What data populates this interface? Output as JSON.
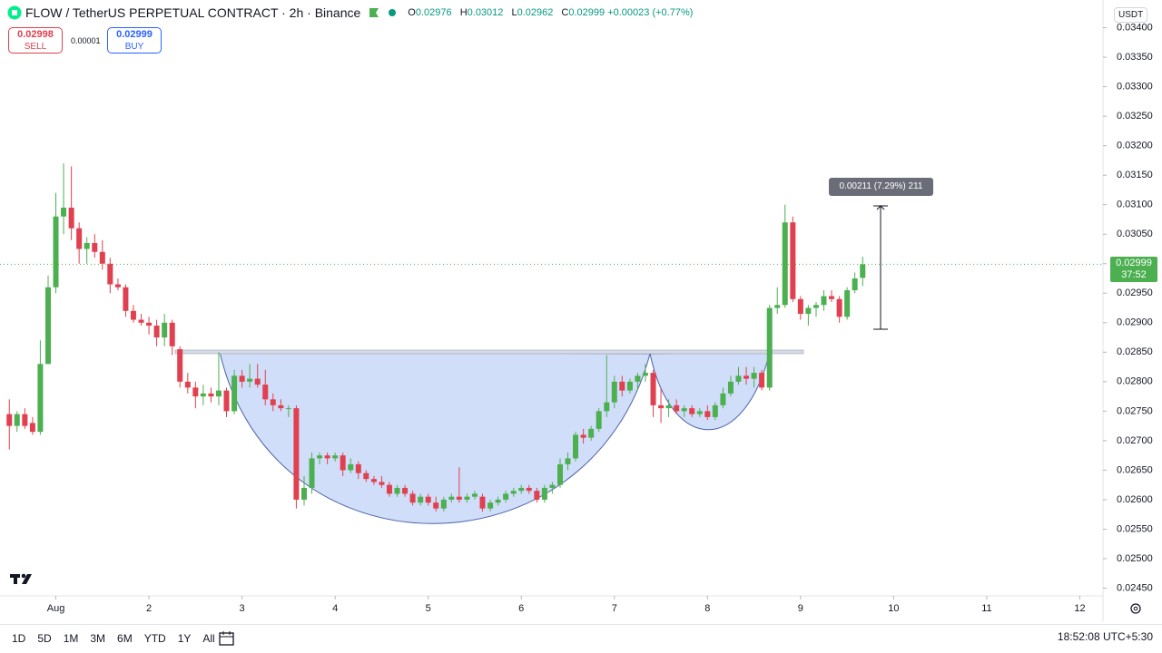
{
  "chart_data": {
    "type": "candlestick",
    "title": "FLOW / TetherUS PERPETUAL CONTRACT · 2h · Binance",
    "ohlc_legend": [
      {
        "label": "O",
        "value": 0.02976
      },
      {
        "label": "H",
        "value": 0.03012
      },
      {
        "label": "L",
        "value": 0.02962
      },
      {
        "label": "C",
        "value": 0.02999
      }
    ],
    "change": {
      "value": 0.00023,
      "label": "+0.00023"
    },
    "change_pct": {
      "value": 0.77,
      "label": "(+0.77%)"
    },
    "sell": {
      "price": 0.02998,
      "label": "SELL"
    },
    "spread": 1e-05,
    "buy": {
      "price": 0.02999,
      "label": "BUY"
    },
    "currency": "USDT",
    "last_price": {
      "value": 0.02999,
      "countdown": "37:52"
    },
    "measure_label": "0.00211 (7.29%) 211",
    "timeframes": [
      "1D",
      "5D",
      "1M",
      "3M",
      "6M",
      "YTD",
      "1Y",
      "All"
    ],
    "clock": "18:52:08 UTC+5:30",
    "up_color": "#4caf50",
    "down_color": "#e0404f",
    "grid": false,
    "xlim": [
      0.4,
      12.2
    ],
    "ylim": [
      0.0244,
      0.03447
    ],
    "xticks": [
      {
        "value": 1,
        "label": "Aug"
      },
      2,
      3,
      4,
      5,
      6,
      7,
      8,
      9,
      10,
      11,
      12
    ],
    "yticks": [
      {
        "value": 0.0245,
        "label": "0.02450"
      },
      {
        "value": 0.025,
        "label": "0.02500"
      },
      {
        "value": 0.0255,
        "label": "0.02550"
      },
      {
        "value": 0.026,
        "label": "0.02600"
      },
      {
        "value": 0.0265,
        "label": "0.02650"
      },
      {
        "value": 0.027,
        "label": "0.02700"
      },
      {
        "value": 0.0275,
        "label": "0.02750"
      },
      {
        "value": 0.028,
        "label": "0.02800"
      },
      {
        "value": 0.0285,
        "label": "0.02850"
      },
      {
        "value": 0.029,
        "label": "0.02900"
      },
      {
        "value": 0.0295,
        "label": "0.02950"
      },
      {
        "value": 0.03,
        "label": "0.03000"
      },
      {
        "value": 0.0305,
        "label": "0.03050"
      },
      {
        "value": 0.031,
        "label": "0.03100"
      },
      {
        "value": 0.0315,
        "label": "0.03150"
      },
      {
        "value": 0.032,
        "label": "0.03200"
      },
      {
        "value": 0.0325,
        "label": "0.03250"
      },
      {
        "value": 0.033,
        "label": "0.03300"
      },
      {
        "value": 0.0335,
        "label": "0.03350"
      },
      {
        "value": 0.034,
        "label": "0.03400"
      }
    ],
    "x": [
      0.5,
      0.583,
      0.667,
      0.75,
      0.833,
      0.917,
      1,
      1.083,
      1.167,
      1.25,
      1.333,
      1.417,
      1.5,
      1.583,
      1.667,
      1.75,
      1.833,
      1.917,
      2,
      2.083,
      2.167,
      2.25,
      2.333,
      2.417,
      2.5,
      2.583,
      2.667,
      2.75,
      2.833,
      2.917,
      3,
      3.083,
      3.167,
      3.25,
      3.333,
      3.417,
      3.5,
      3.583,
      3.667,
      3.75,
      3.833,
      3.917,
      4,
      4.083,
      4.167,
      4.25,
      4.333,
      4.417,
      4.5,
      4.583,
      4.667,
      4.75,
      4.833,
      4.917,
      5,
      5.083,
      5.167,
      5.25,
      5.333,
      5.417,
      5.5,
      5.583,
      5.667,
      5.75,
      5.833,
      5.917,
      6,
      6.083,
      6.167,
      6.25,
      6.333,
      6.417,
      6.5,
      6.583,
      6.667,
      6.75,
      6.833,
      6.917,
      7,
      7.083,
      7.167,
      7.25,
      7.333,
      7.417,
      7.5,
      7.583,
      7.667,
      7.75,
      7.833,
      7.917,
      8,
      8.083,
      8.167,
      8.25,
      8.333,
      8.417,
      8.5,
      8.583,
      8.667,
      8.75,
      8.833,
      8.917,
      9,
      9.083,
      9.167,
      9.25,
      9.333,
      9.417,
      9.5,
      9.583,
      9.667
    ],
    "open": [
      0.02745,
      0.02725,
      0.02745,
      0.0273,
      0.02715,
      0.0283,
      0.0296,
      0.0308,
      0.03095,
      0.0306,
      0.03025,
      0.03035,
      0.0302,
      0.03,
      0.02965,
      0.0296,
      0.0292,
      0.02905,
      0.029,
      0.02895,
      0.02875,
      0.029,
      0.02855,
      0.028,
      0.0279,
      0.02775,
      0.0278,
      0.02775,
      0.02785,
      0.0275,
      0.0281,
      0.028,
      0.02805,
      0.02795,
      0.0277,
      0.0276,
      0.02755,
      0.02755,
      0.026,
      0.0262,
      0.0267,
      0.02675,
      0.0267,
      0.02675,
      0.0265,
      0.0266,
      0.02645,
      0.02635,
      0.0263,
      0.02625,
      0.0261,
      0.0262,
      0.0261,
      0.02595,
      0.02605,
      0.02595,
      0.02585,
      0.026,
      0.02605,
      0.026,
      0.02605,
      0.02605,
      0.02585,
      0.02595,
      0.026,
      0.0261,
      0.02615,
      0.0262,
      0.02615,
      0.026,
      0.0262,
      0.02625,
      0.0266,
      0.0267,
      0.0271,
      0.02705,
      0.0272,
      0.0275,
      0.02765,
      0.028,
      0.02785,
      0.028,
      0.0281,
      0.02815,
      0.0276,
      0.02755,
      0.0276,
      0.0275,
      0.02755,
      0.02745,
      0.0275,
      0.0274,
      0.0276,
      0.0278,
      0.028,
      0.0281,
      0.02805,
      0.02815,
      0.0279,
      0.02925,
      0.0293,
      0.0307,
      0.0294,
      0.02915,
      0.02925,
      0.0293,
      0.02945,
      0.0294,
      0.0291,
      0.02955,
      0.02976
    ],
    "high": [
      0.0277,
      0.0275,
      0.02755,
      0.0274,
      0.0287,
      0.0298,
      0.0312,
      0.0317,
      0.03165,
      0.0307,
      0.03045,
      0.0305,
      0.0304,
      0.0301,
      0.02975,
      0.02965,
      0.0293,
      0.02915,
      0.0291,
      0.02905,
      0.02915,
      0.02905,
      0.0286,
      0.02815,
      0.028,
      0.02795,
      0.0279,
      0.0285,
      0.0279,
      0.0282,
      0.0282,
      0.0283,
      0.0283,
      0.0282,
      0.0278,
      0.0277,
      0.0276,
      0.0276,
      0.0264,
      0.0268,
      0.0268,
      0.0268,
      0.0268,
      0.0268,
      0.0267,
      0.02665,
      0.0265,
      0.0264,
      0.0264,
      0.0263,
      0.02625,
      0.02625,
      0.02615,
      0.0261,
      0.0261,
      0.02605,
      0.02605,
      0.0261,
      0.02655,
      0.0261,
      0.02615,
      0.0261,
      0.026,
      0.02605,
      0.02615,
      0.0262,
      0.02625,
      0.02625,
      0.0262,
      0.02625,
      0.0263,
      0.0267,
      0.0268,
      0.02715,
      0.0272,
      0.02725,
      0.02755,
      0.02845,
      0.0281,
      0.0281,
      0.02805,
      0.02815,
      0.0283,
      0.0282,
      0.0279,
      0.0277,
      0.0277,
      0.0276,
      0.0276,
      0.02755,
      0.0276,
      0.02765,
      0.0279,
      0.0281,
      0.02825,
      0.02825,
      0.02825,
      0.0282,
      0.0293,
      0.0296,
      0.031,
      0.0308,
      0.02945,
      0.0293,
      0.02935,
      0.02955,
      0.02955,
      0.02945,
      0.0296,
      0.02985,
      0.03012
    ],
    "low": [
      0.02685,
      0.02715,
      0.0272,
      0.0271,
      0.0271,
      0.0283,
      0.0295,
      0.0305,
      0.0304,
      0.03,
      0.03,
      0.0301,
      0.0299,
      0.0295,
      0.02955,
      0.0291,
      0.029,
      0.02895,
      0.0288,
      0.0286,
      0.0286,
      0.02845,
      0.0279,
      0.0278,
      0.02755,
      0.0276,
      0.02765,
      0.0276,
      0.0274,
      0.02745,
      0.0279,
      0.0279,
      0.0279,
      0.0276,
      0.0275,
      0.0275,
      0.0274,
      0.02585,
      0.0259,
      0.0261,
      0.0266,
      0.0266,
      0.02665,
      0.0264,
      0.02645,
      0.02635,
      0.0263,
      0.02625,
      0.0262,
      0.02605,
      0.02605,
      0.02605,
      0.0259,
      0.0259,
      0.0259,
      0.0258,
      0.0258,
      0.02595,
      0.02595,
      0.02595,
      0.026,
      0.0258,
      0.0258,
      0.0259,
      0.02595,
      0.02605,
      0.0261,
      0.0261,
      0.02595,
      0.02595,
      0.0261,
      0.0262,
      0.0265,
      0.02665,
      0.02695,
      0.027,
      0.02715,
      0.0274,
      0.02755,
      0.02775,
      0.0278,
      0.02785,
      0.028,
      0.0274,
      0.0273,
      0.0274,
      0.02745,
      0.0274,
      0.0274,
      0.0274,
      0.02735,
      0.02735,
      0.02755,
      0.02775,
      0.02795,
      0.02795,
      0.0279,
      0.02785,
      0.02785,
      0.02915,
      0.02925,
      0.02935,
      0.02905,
      0.02895,
      0.0291,
      0.0292,
      0.02935,
      0.029,
      0.02905,
      0.0295,
      0.02962
    ],
    "close": [
      0.02725,
      0.02745,
      0.02725,
      0.02715,
      0.0283,
      0.0296,
      0.0308,
      0.03095,
      0.0306,
      0.03025,
      0.03035,
      0.0302,
      0.03,
      0.02965,
      0.0296,
      0.0292,
      0.02905,
      0.029,
      0.02895,
      0.02875,
      0.029,
      0.0286,
      0.028,
      0.0279,
      0.02775,
      0.0278,
      0.02775,
      0.02785,
      0.0275,
      0.0281,
      0.028,
      0.02805,
      0.02795,
      0.0277,
      0.0276,
      0.02755,
      0.02755,
      0.026,
      0.0262,
      0.0267,
      0.02675,
      0.0267,
      0.02675,
      0.0265,
      0.0266,
      0.02645,
      0.02635,
      0.0263,
      0.02625,
      0.0261,
      0.0262,
      0.0261,
      0.02595,
      0.02605,
      0.02595,
      0.02585,
      0.026,
      0.02605,
      0.026,
      0.02605,
      0.0261,
      0.02585,
      0.02595,
      0.026,
      0.0261,
      0.02615,
      0.0262,
      0.02615,
      0.026,
      0.0262,
      0.02625,
      0.0266,
      0.0267,
      0.0271,
      0.02705,
      0.0272,
      0.0275,
      0.02765,
      0.028,
      0.02785,
      0.028,
      0.0281,
      0.02815,
      0.0276,
      0.02755,
      0.0276,
      0.0275,
      0.02755,
      0.02745,
      0.0275,
      0.0274,
      0.0276,
      0.0278,
      0.028,
      0.0281,
      0.02805,
      0.02815,
      0.0279,
      0.02925,
      0.0293,
      0.0307,
      0.0294,
      0.02915,
      0.02925,
      0.0293,
      0.02945,
      0.0294,
      0.0291,
      0.02955,
      0.02975,
      0.02999
    ]
  }
}
